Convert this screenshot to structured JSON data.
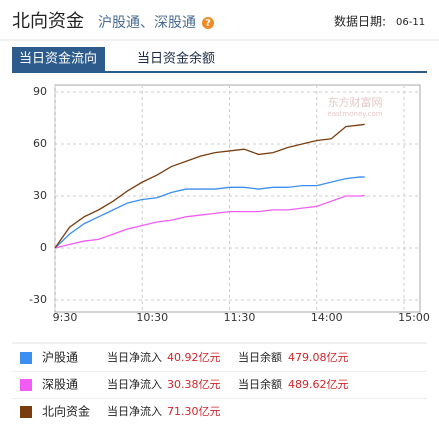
{
  "header": {
    "title": "北向资金",
    "subtitle": "沪股通、深股通",
    "help_icon": "?",
    "date_label": "数据日期:",
    "date": "06-11"
  },
  "tabs": [
    "当日资金流向",
    "当日资金余额"
  ],
  "watermark": {
    "name": "东方财富网",
    "site": "eastmoney.com"
  },
  "chart_data": {
    "type": "line",
    "x": [
      0,
      10,
      20,
      30,
      40,
      50,
      60,
      70,
      80,
      90,
      100,
      110,
      120,
      130,
      140,
      150,
      160,
      170,
      180,
      190,
      200,
      210,
      213
    ],
    "xlim": [
      0,
      240
    ],
    "xticks": [
      {
        "value": 0,
        "label": "9:30"
      },
      {
        "value": 60,
        "label": "10:30"
      },
      {
        "value": 120,
        "label": "11:30"
      },
      {
        "value": 180,
        "label": "14:00"
      },
      {
        "value": 240,
        "label": "15:00"
      }
    ],
    "ylim": [
      -30,
      90
    ],
    "yticks": [
      -30,
      0,
      30,
      60,
      90
    ],
    "grid": true,
    "series": [
      {
        "name": "沪股通",
        "color": "#3a8ff0",
        "values": [
          0,
          8,
          14,
          18,
          22,
          26,
          28,
          29,
          32,
          34,
          34,
          34,
          35,
          35,
          34,
          35,
          35,
          36,
          36,
          38,
          40,
          41,
          40.92
        ],
        "net_inflow_label": "当日净流入",
        "net_inflow": "40.92亿元",
        "balance_label": "当日余额",
        "balance": "479.08亿元"
      },
      {
        "name": "深股通",
        "color": "#f25cf5",
        "values": [
          0,
          2,
          4,
          5,
          8,
          11,
          13,
          15,
          16,
          18,
          19,
          20,
          21,
          21,
          21,
          22,
          22,
          23,
          24,
          27,
          30,
          30,
          30.38
        ],
        "net_inflow_label": "当日净流入",
        "net_inflow": "30.38亿元",
        "balance_label": "当日余额",
        "balance": "489.62亿元"
      },
      {
        "name": "北向资金",
        "color": "#7a3d10",
        "values": [
          0,
          12,
          18,
          22,
          27,
          33,
          38,
          42,
          47,
          50,
          53,
          55,
          56,
          57,
          54,
          55,
          58,
          60,
          62,
          63,
          70,
          71,
          71.3
        ],
        "net_inflow_label": "当日净流入",
        "net_inflow": "71.30亿元"
      }
    ]
  }
}
